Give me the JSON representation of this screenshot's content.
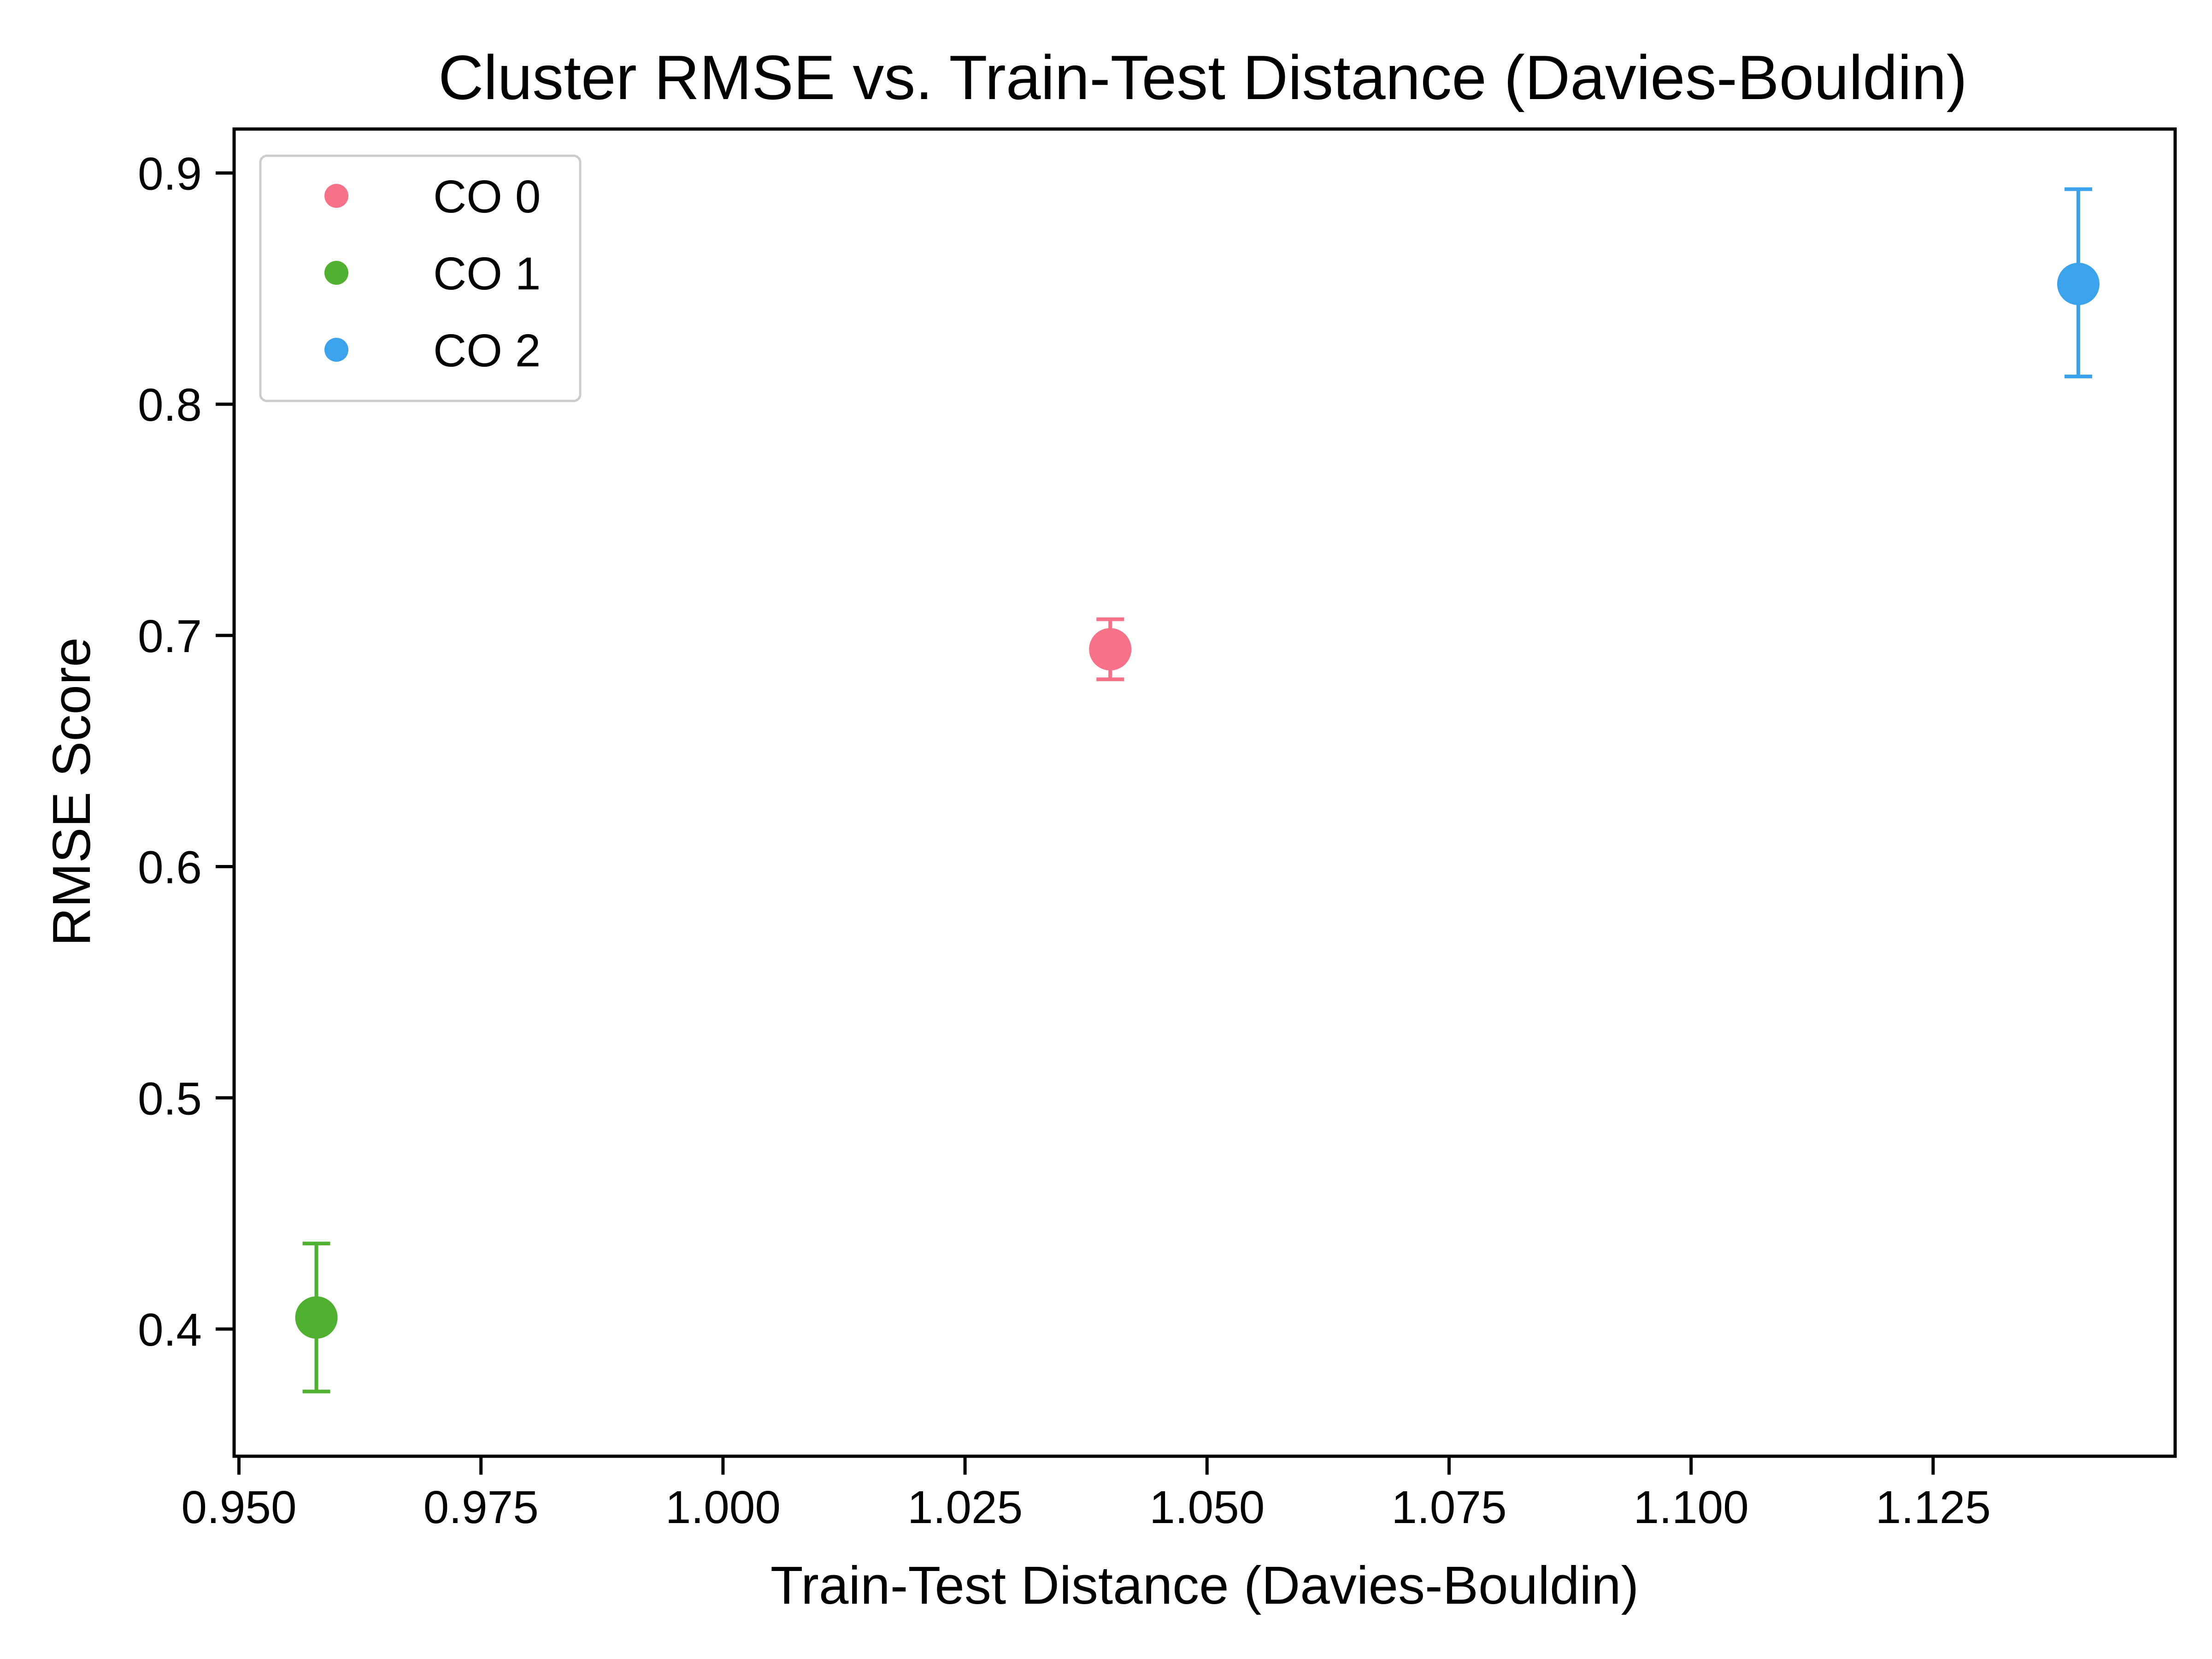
{
  "chart_data": {
    "type": "scatter",
    "title": "Cluster RMSE vs. Train-Test Distance (Davies-Bouldin)",
    "xlabel": "Train-Test Distance (Davies-Bouldin)",
    "ylabel": "RMSE Score",
    "xlim": [
      0.9495,
      1.15
    ],
    "ylim": [
      0.345,
      0.919
    ],
    "x_ticks": [
      0.95,
      0.975,
      1.0,
      1.025,
      1.05,
      1.075,
      1.1,
      1.125
    ],
    "x_tick_labels": [
      "0.950",
      "0.975",
      "1.000",
      "1.025",
      "1.050",
      "1.075",
      "1.100",
      "1.125"
    ],
    "y_ticks": [
      0.4,
      0.5,
      0.6,
      0.7,
      0.8,
      0.9
    ],
    "y_tick_labels": [
      "0.4",
      "0.5",
      "0.6",
      "0.7",
      "0.8",
      "0.9"
    ],
    "grid": false,
    "legend_position": "top-left",
    "series": [
      {
        "name": "CO 0",
        "color": "#f77189",
        "x": 1.04,
        "y": 0.694,
        "yerr_low": 0.681,
        "yerr_high": 0.707
      },
      {
        "name": "CO 1",
        "color": "#50b131",
        "x": 0.958,
        "y": 0.405,
        "yerr_low": 0.373,
        "yerr_high": 0.437
      },
      {
        "name": "CO 2",
        "color": "#3ba3ec",
        "x": 1.14,
        "y": 0.852,
        "yerr_low": 0.812,
        "yerr_high": 0.893
      }
    ]
  }
}
